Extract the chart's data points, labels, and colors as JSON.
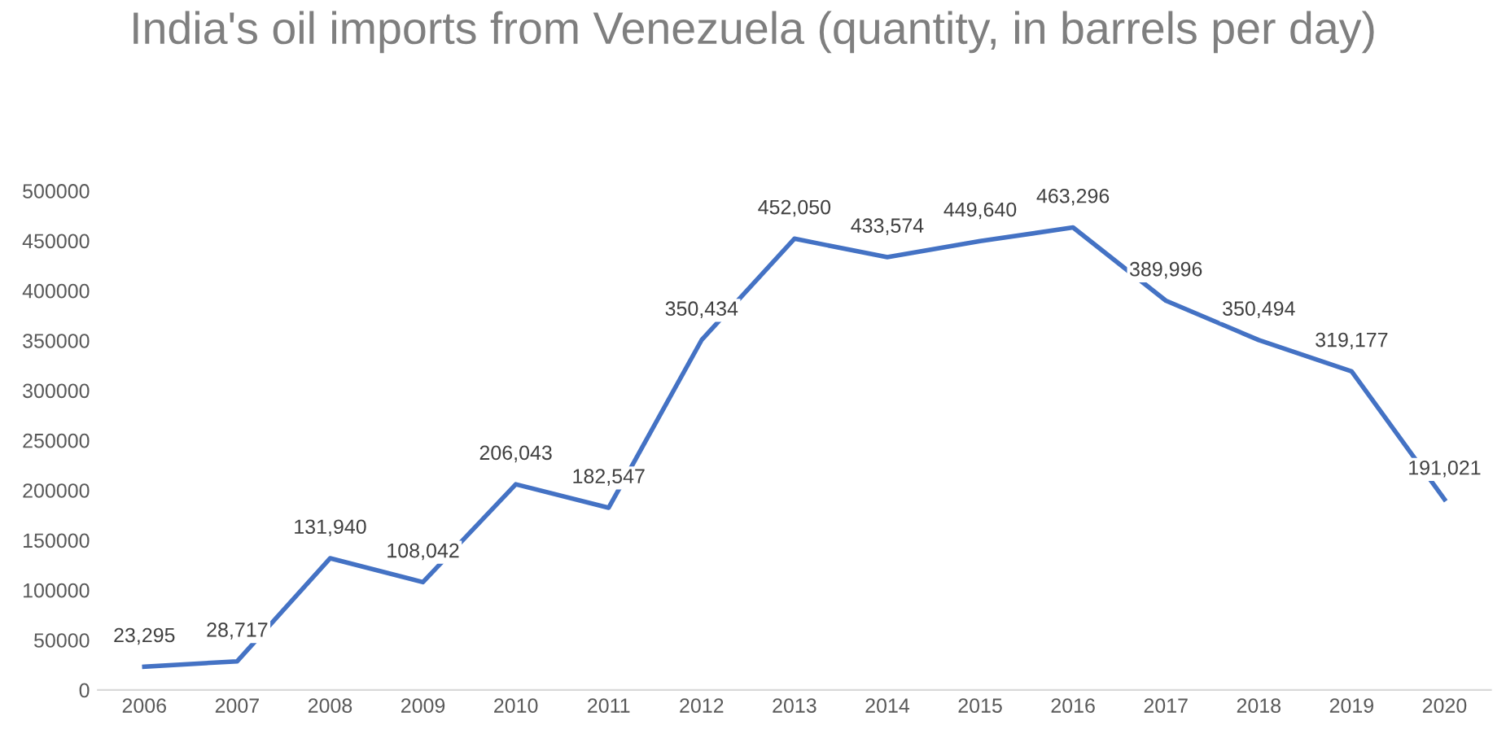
{
  "chart_data": {
    "type": "line",
    "title": "India's oil imports from Venezuela (quantity, in barrels per day)",
    "categories": [
      "2006",
      "2007",
      "2008",
      "2009",
      "2010",
      "2011",
      "2012",
      "2013",
      "2014",
      "2015",
      "2016",
      "2017",
      "2018",
      "2019",
      "2020"
    ],
    "series": [
      {
        "color": "#4472c4",
        "values": [
          23295,
          28717,
          131940,
          108042,
          206043,
          182547,
          350434,
          452050,
          433574,
          449640,
          463296,
          389996,
          350494,
          319177,
          191021
        ],
        "value_labels": [
          "23,295",
          "28,717",
          "131,940",
          "108,042",
          "206,043",
          "182,547",
          "350,434",
          "452,050",
          "433,574",
          "449,640",
          "463,296",
          "389,996",
          "350,494",
          "319,177",
          "191,021"
        ]
      }
    ],
    "ylim": [
      0,
      500000
    ],
    "yticks": [
      0,
      50000,
      100000,
      150000,
      200000,
      250000,
      300000,
      350000,
      400000,
      450000,
      500000
    ],
    "grid": false,
    "legend": false,
    "marker": "none",
    "line_style": "solid"
  }
}
